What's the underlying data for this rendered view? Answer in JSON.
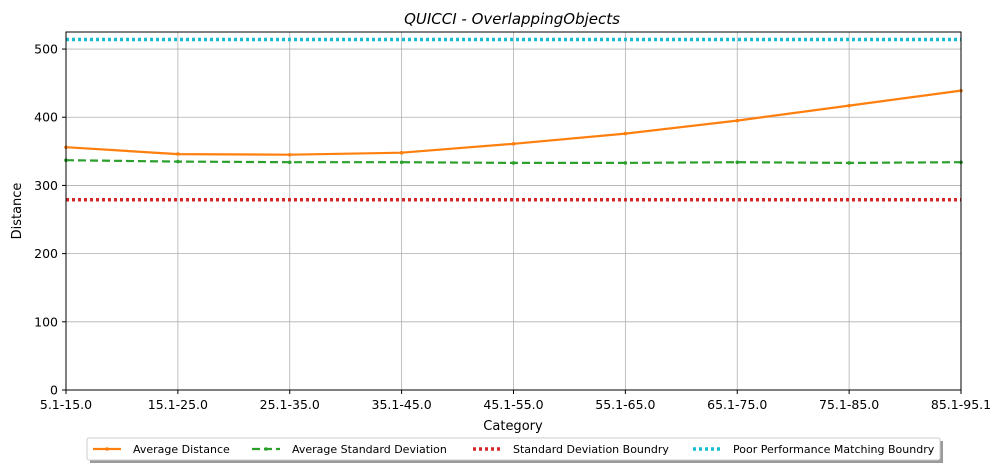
{
  "chart_data": {
    "type": "line",
    "title": "QUICCI - OverlappingObjects",
    "xlabel": "Category",
    "ylabel": "Distance",
    "categories": [
      "5.1-15.0",
      "15.1-25.0",
      "25.1-35.0",
      "35.1-45.0",
      "45.1-55.0",
      "55.1-65.0",
      "65.1-75.0",
      "75.1-85.0",
      "85.1-95.1"
    ],
    "ylim": [
      0,
      525
    ],
    "yticks": [
      0,
      100,
      200,
      300,
      400,
      500
    ],
    "grid": true,
    "legend_position": "bottom-center",
    "series": [
      {
        "name": "Average Distance",
        "values": [
          356,
          346,
          345,
          348,
          361,
          376,
          395,
          417,
          439
        ],
        "color": "#ff7f0e",
        "style": "solid-marker"
      },
      {
        "name": "Average Standard Deviation",
        "values": [
          337,
          335,
          334,
          334,
          333,
          333,
          334,
          333,
          334
        ],
        "color": "#2ca02c",
        "style": "dashed-marker"
      },
      {
        "name": "Standard Deviation Boundry",
        "values": [
          279,
          279,
          279,
          279,
          279,
          279,
          279,
          279,
          279
        ],
        "color": "#d62728",
        "style": "dotted"
      },
      {
        "name": "Poor Performance Matching Boundry",
        "values": [
          514,
          514,
          514,
          514,
          514,
          514,
          514,
          514,
          514
        ],
        "color": "#17becf",
        "style": "dotted"
      }
    ]
  }
}
